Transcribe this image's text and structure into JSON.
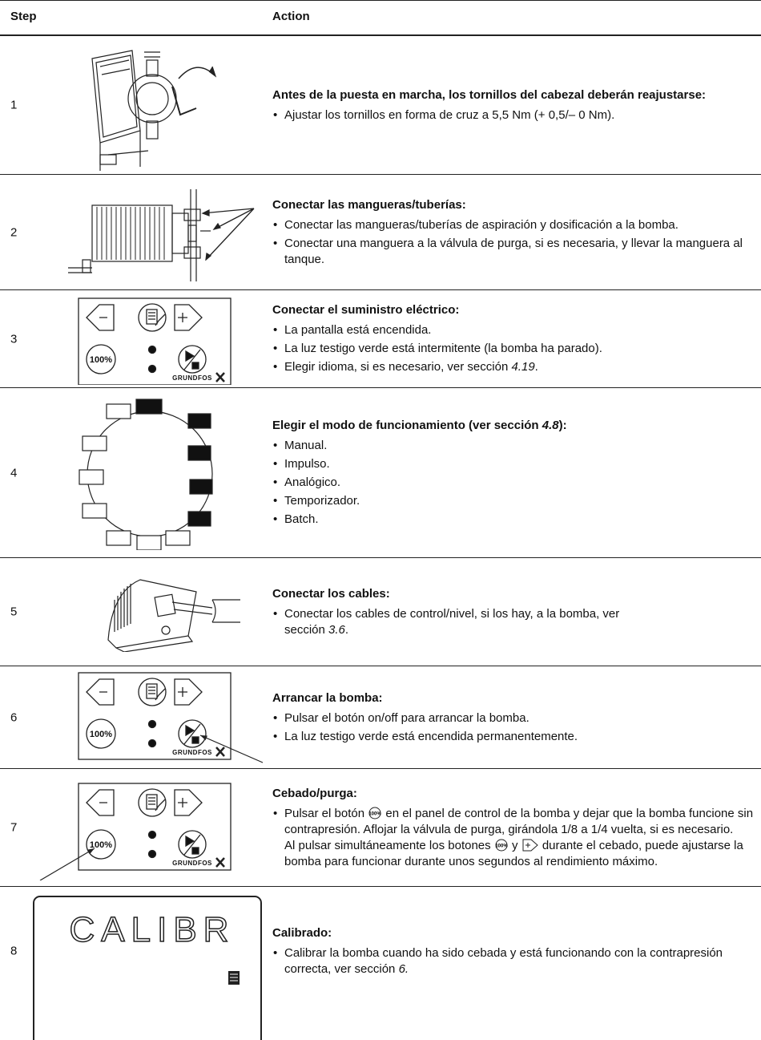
{
  "header": {
    "step": "Step",
    "action": "Action"
  },
  "figures": {
    "button": "100%",
    "brand": "GRUNDFOS",
    "display": "CALIBR"
  },
  "rows": [
    {
      "step": "1",
      "title": "Antes de la puesta en marcha, los tornillos del cabezal deberán reajustarse:",
      "bullets": [
        "Ajustar los tornillos en forma de cruz a 5,5 Nm (+ 0,5/– 0 Nm)."
      ]
    },
    {
      "step": "2",
      "title": "Conectar las mangueras/tuberías:",
      "bullets": [
        "Conectar las mangueras/tuberías de aspiración y dosificación a la bomba.",
        "Conectar una manguera a la válvula de purga, si es necesaria, y llevar la manguera al tanque."
      ]
    },
    {
      "step": "3",
      "title": "Conectar el suministro eléctrico:",
      "bullets": [
        "La pantalla está encendida.",
        "La luz testigo verde está intermitente (la bomba ha parado).",
        {
          "text": "Elegir idioma, si es necesario, ver sección ",
          "ref": "4.19",
          "tail": "."
        }
      ]
    },
    {
      "step": "4",
      "title": {
        "text": "Elegir el modo de funcionamiento (ver sección ",
        "ref": "4.8",
        "tail": "):"
      },
      "bullets": [
        "Manual.",
        "Impulso.",
        "Analógico.",
        "Temporizador.",
        "Batch."
      ]
    },
    {
      "step": "5",
      "title": "Conectar los cables:",
      "bullets": [
        {
          "text": "Conectar los cables de control/nivel, si los hay, a la bomba, ver sección ",
          "ref": "3.6",
          "tail": "."
        }
      ]
    },
    {
      "step": "6",
      "title": "Arrancar la bomba:",
      "bullets": [
        "Pulsar el botón on/off para arrancar la bomba.",
        "La luz testigo verde está encendida permanentemente."
      ]
    },
    {
      "step": "7",
      "title": "Cebado/purga:",
      "bullets": [
        {
          "a": "Pulsar el botón",
          "b": "en el panel de control de la bomba y dejar que la bomba funcione sin contrapresión. Aflojar la válvula de purga, girándola 1/8 a 1/4 vuelta, si es necesario.",
          "c": "Al pulsar simultáneamente los botones",
          "d": "y",
          "e": "durante el cebado, puede ajustarse la bomba para funcionar durante unos segundos al rendimiento máximo."
        }
      ]
    },
    {
      "step": "8",
      "title": "Calibrado:",
      "bullets": [
        {
          "text": "Calibrar la bomba cuando ha sido cebada y está funcionando con la contrapresión correcta, ver sección ",
          "ref": "6."
        }
      ]
    }
  ]
}
